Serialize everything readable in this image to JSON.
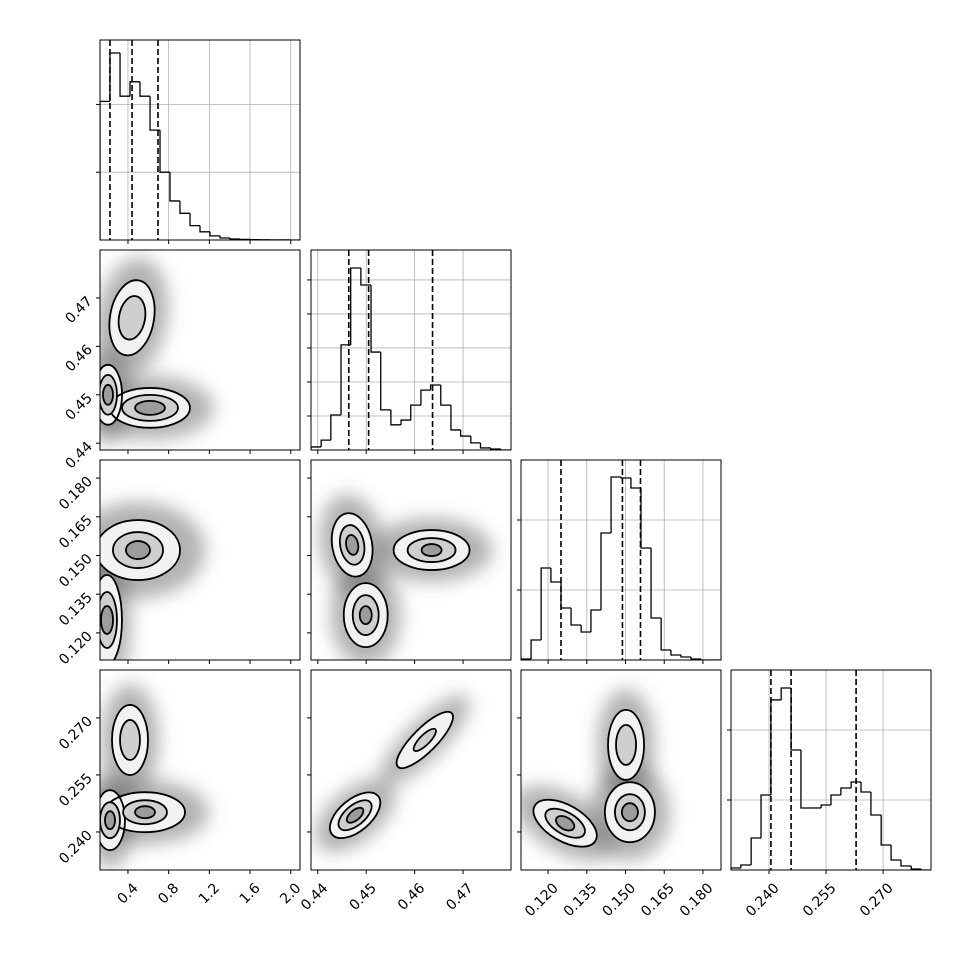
{
  "chart_data": [
    {
      "type": "histogram",
      "xlim": [
        0.125,
        2.091
      ],
      "ylim": [
        0,
        2950
      ],
      "xticks": [
        0.4,
        0.8,
        1.2,
        1.6,
        {
          "value": 2,
          "label": "2.0"
        }
      ],
      "yticks": [
        1000,
        2000
      ],
      "grid": true,
      "bins": [
        0.125,
        0.223,
        0.322,
        0.42,
        0.518,
        0.617,
        0.715,
        0.813,
        0.911,
        1.01,
        1.108,
        1.206,
        1.305,
        1.403,
        1.501,
        1.6,
        1.698,
        1.796,
        1.894,
        1.993,
        2.091
      ],
      "values": [
        2045,
        2758,
        2121,
        2333,
        2121,
        1621,
        1000,
        576,
        394,
        212,
        121,
        61,
        30,
        15,
        8,
        5,
        3,
        2,
        2,
        0
      ],
      "quantiles": [
        0.223,
        0.44,
        0.695
      ]
    },
    {
      "type": "contour",
      "xlim": [
        0.125,
        2.091
      ],
      "ylim": [
        0.4386,
        0.4799
      ],
      "xticks": [
        0.4,
        0.8,
        1.2,
        1.6,
        {
          "value": 2,
          "label": "2.0"
        }
      ],
      "yticks": [
        0.44,
        0.45,
        0.46,
        0.47
      ],
      "blobs": [
        {
          "x": 0.4396,
          "y": 0.4659,
          "rx": [
            0.216,
            0.128
          ],
          "ry": [
            0.00784,
            0.00454
          ],
          "angle": 10
        },
        {
          "x": 0.6165,
          "y": 0.4473,
          "rx": [
            0.393,
            0.275,
            0.147
          ],
          "ry": [
            0.00412,
            0.00268,
            0.00144
          ],
          "angle": 0
        },
        {
          "x": 0.2036,
          "y": 0.45,
          "rx": [
            0.138,
            0.088,
            0.049
          ],
          "ry": [
            0.00619,
            0.00412,
            0.00206
          ],
          "angle": 0
        }
      ]
    },
    {
      "type": "histogram",
      "xlim": [
        0.4386,
        0.4799
      ],
      "ylim": [
        0,
        588
      ],
      "xticks": [
        0.44,
        0.45,
        0.46,
        0.47
      ],
      "yticks": [
        100,
        200,
        300,
        400,
        500
      ],
      "grid": true,
      "bins": [
        0.4386,
        0.4407,
        0.4427,
        0.4448,
        0.4468,
        0.4489,
        0.451,
        0.453,
        0.4551,
        0.4572,
        0.4592,
        0.4613,
        0.4633,
        0.4654,
        0.4675,
        0.4695,
        0.4716,
        0.4736,
        0.4757,
        0.4778,
        0.4798
      ],
      "values": [
        9,
        29,
        103,
        309,
        535,
        485,
        288,
        118,
        74,
        88,
        132,
        176,
        191,
        132,
        59,
        41,
        21,
        6,
        3,
        0
      ],
      "quantiles": [
        0.4464,
        0.4505,
        0.4637
      ]
    },
    {
      "type": "contour",
      "xlim": [
        0.125,
        2.091
      ],
      "ylim": [
        0.1095,
        0.187
      ],
      "xticks": [
        0.4,
        0.8,
        1.2,
        1.6,
        {
          "value": 2,
          "label": "2.0"
        }
      ],
      "yticks": [
        {
          "value": 0.12,
          "label": "0.120"
        },
        0.135,
        {
          "value": 0.15,
          "label": "0.150"
        },
        0.165,
        {
          "value": 0.18,
          "label": "0.180"
        }
      ],
      "blobs": [
        {
          "x": 0.4985,
          "y": 0.1521,
          "rx": [
            0.413,
            0.246,
            0.118
          ],
          "ry": [
            0.01163,
            0.00698,
            0.00349
          ],
          "angle": 0
        },
        {
          "x": 0.1938,
          "y": 0.125,
          "rx": [
            0.147,
            0.098,
            0.059
          ],
          "ry": [
            0.01744,
            0.01085,
            0.00543
          ],
          "angle": 0
        }
      ]
    },
    {
      "type": "contour",
      "xlim": [
        0.4386,
        0.4799
      ],
      "ylim": [
        0.1095,
        0.187
      ],
      "xticks": [
        0.44,
        0.45,
        0.46,
        0.47
      ],
      "yticks": [
        {
          "value": 0.12,
          "label": "0.120"
        },
        0.135,
        {
          "value": 0.15,
          "label": "0.150"
        },
        0.165,
        {
          "value": 0.18,
          "label": "0.180"
        }
      ],
      "blobs": [
        {
          "x": 0.4471,
          "y": 0.1541,
          "rx": [
            0.00412,
            0.00247,
            0.00124
          ],
          "ry": [
            0.0124,
            0.00775,
            0.00388
          ],
          "angle": -10
        },
        {
          "x": 0.4499,
          "y": 0.1269,
          "rx": [
            0.00454,
            0.00268,
            0.00124
          ],
          "ry": [
            0.0124,
            0.00775,
            0.00349
          ],
          "angle": 0
        },
        {
          "x": 0.4635,
          "y": 0.1521,
          "rx": [
            0.00784,
            0.00495,
            0.00206
          ],
          "ry": [
            0.00775,
            0.00465,
            0.00233
          ],
          "angle": 0
        }
      ]
    },
    {
      "type": "histogram",
      "xlim": [
        0.1095,
        0.187
      ],
      "ylim": [
        0,
        2857
      ],
      "xticks": [
        {
          "value": 0.12,
          "label": "0.120"
        },
        0.135,
        {
          "value": 0.15,
          "label": "0.150"
        },
        0.165,
        {
          "value": 0.18,
          "label": "0.180"
        }
      ],
      "yticks": [
        1000,
        2000
      ],
      "grid": true,
      "bins": [
        0.1095,
        0.1134,
        0.1173,
        0.1211,
        0.125,
        0.1289,
        0.1328,
        0.1366,
        0.1405,
        0.1444,
        0.1483,
        0.1521,
        0.156,
        0.1599,
        0.1638,
        0.1676,
        0.1715,
        0.1754,
        0.1793,
        0.1831,
        0.187
      ],
      "values": [
        14,
        286,
        1314,
        1114,
        743,
        500,
        400,
        714,
        1814,
        2614,
        2600,
        2457,
        1600,
        600,
        143,
        71,
        43,
        14,
        0,
        0
      ],
      "quantiles": [
        0.125,
        0.1488,
        0.1558
      ]
    },
    {
      "type": "contour",
      "xlim": [
        0.125,
        2.091
      ],
      "ylim": [
        0.23,
        0.2826
      ],
      "xticks": [
        0.4,
        0.8,
        1.2,
        1.6,
        {
          "value": 2,
          "label": "2.0"
        }
      ],
      "yticks": [
        {
          "value": 0.24,
          "label": "0.240"
        },
        0.255,
        {
          "value": 0.27,
          "label": "0.270"
        }
      ],
      "blobs": [
        {
          "x": 0.4199,
          "y": 0.2642,
          "rx": [
            0.177,
            0.098
          ],
          "ry": [
            0.00921,
            0.00526
          ],
          "angle": 0
        },
        {
          "x": 0.5674,
          "y": 0.2452,
          "rx": [
            0.393,
            0.216,
            0.098
          ],
          "ry": [
            0.00526,
            0.00316,
            0.00158
          ],
          "angle": 0
        },
        {
          "x": 0.2233,
          "y": 0.2431,
          "rx": [
            0.147,
            0.098,
            0.049
          ],
          "ry": [
            0.00789,
            0.00474,
            0.00237
          ],
          "angle": 0
        }
      ]
    },
    {
      "type": "contour",
      "xlim": [
        0.4386,
        0.4799
      ],
      "ylim": [
        0.23,
        0.2826
      ],
      "xticks": [
        0.44,
        0.45,
        0.46,
        0.47
      ],
      "yticks": [
        {
          "value": 0.24,
          "label": "0.240"
        },
        0.255,
        {
          "value": 0.27,
          "label": "0.270"
        }
      ],
      "blobs": [
        {
          "x": 0.4477,
          "y": 0.2444,
          "rx": [
            0.00619,
            0.00412,
            0.00206
          ],
          "ry": [
            0.00421,
            0.00263,
            0.00132
          ],
          "angle": -40
        },
        {
          "x": 0.4621,
          "y": 0.2642,
          "rx": [
            0.00784,
            0.00309
          ],
          "ry": [
            0.00316,
            0.00132
          ],
          "angle": -45
        }
      ]
    },
    {
      "type": "contour",
      "xlim": [
        0.1095,
        0.187
      ],
      "ylim": [
        0.23,
        0.2826
      ],
      "xticks": [
        {
          "value": 0.12,
          "label": "0.120"
        },
        0.135,
        {
          "value": 0.15,
          "label": "0.150"
        },
        0.165,
        {
          "value": 0.18,
          "label": "0.180"
        }
      ],
      "yticks": [
        {
          "value": 0.24,
          "label": "0.240"
        },
        0.255,
        {
          "value": 0.27,
          "label": "0.270"
        }
      ],
      "blobs": [
        {
          "x": 0.1266,
          "y": 0.2423,
          "rx": [
            0.01357,
            0.00853,
            0.00388
          ],
          "ry": [
            0.00474,
            0.00289,
            0.00158
          ],
          "angle": 30
        },
        {
          "x": 0.1502,
          "y": 0.2629,
          "rx": [
            0.00698,
            0.00388
          ],
          "ry": [
            0.00921,
            0.00526
          ],
          "angle": 0
        },
        {
          "x": 0.1517,
          "y": 0.2452,
          "rx": [
            0.00969,
            0.00581,
            0.0031
          ],
          "ry": [
            0.00789,
            0.00474,
            0.00237
          ],
          "angle": 0
        }
      ]
    },
    {
      "type": "histogram",
      "xlim": [
        0.23,
        0.2826
      ],
      "ylim": [
        0,
        2857
      ],
      "xticks": [
        {
          "value": 0.24,
          "label": "0.240"
        },
        0.255,
        {
          "value": 0.27,
          "label": "0.270"
        }
      ],
      "yticks": [
        1000,
        2000
      ],
      "grid": true,
      "bins": [
        0.23,
        0.2326,
        0.2353,
        0.2379,
        0.2405,
        0.2432,
        0.2458,
        0.2484,
        0.2511,
        0.2537,
        0.2563,
        0.2589,
        0.2616,
        0.2642,
        0.2668,
        0.2695,
        0.2721,
        0.2747,
        0.2774,
        0.28,
        0.2826
      ],
      "values": [
        29,
        71,
        457,
        1071,
        2429,
        2600,
        1714,
        886,
        886,
        929,
        1071,
        1171,
        1257,
        1114,
        786,
        357,
        143,
        57,
        14,
        0
      ],
      "quantiles": [
        0.2405,
        0.2458,
        0.2629
      ]
    }
  ]
}
